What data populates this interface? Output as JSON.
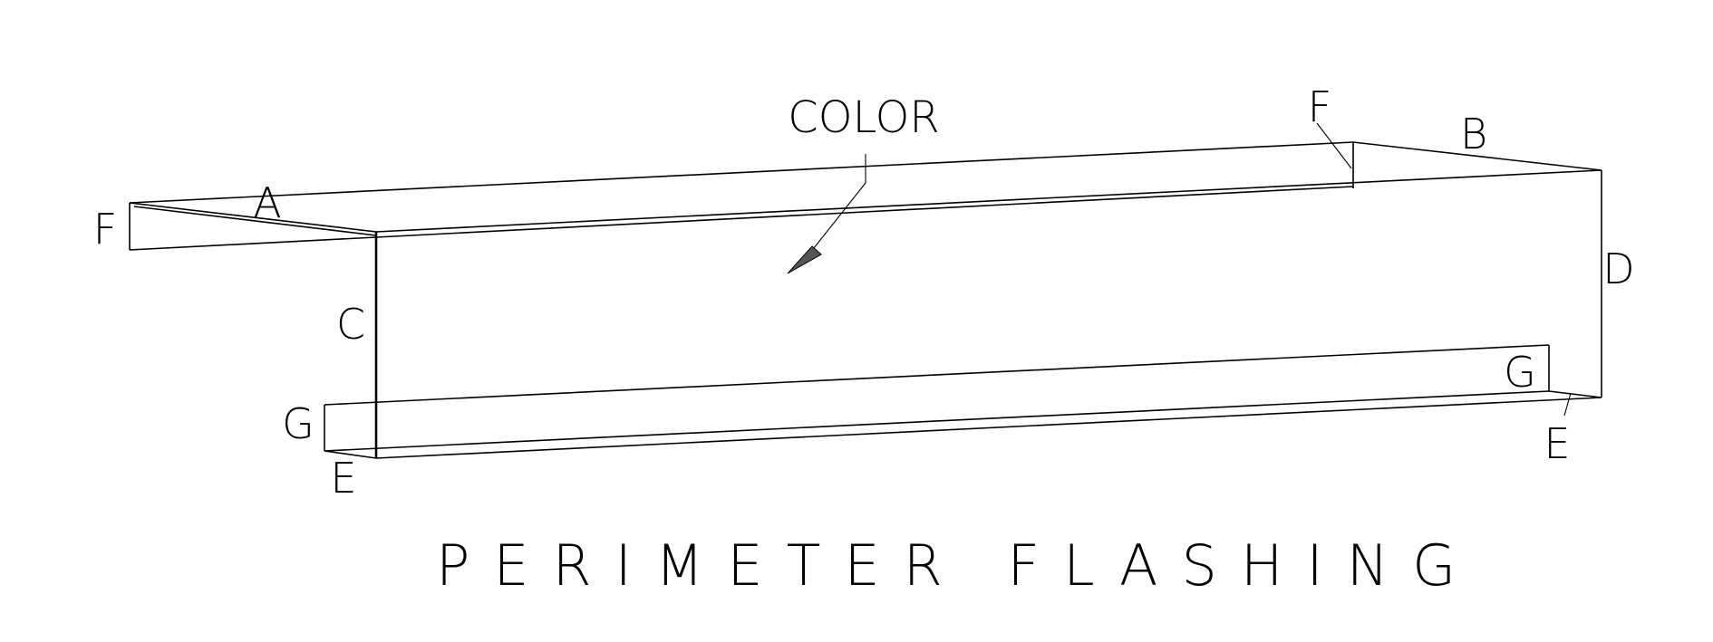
{
  "diagram": {
    "title": "PERIMETER FLASHING",
    "callout": "COLOR",
    "labels": {
      "a": "A",
      "b": "B",
      "c": "C",
      "d": "D",
      "e_left": "E",
      "e_right": "E",
      "f_left": "F",
      "f_right": "F",
      "g_left": "G",
      "g_right": "G"
    }
  }
}
